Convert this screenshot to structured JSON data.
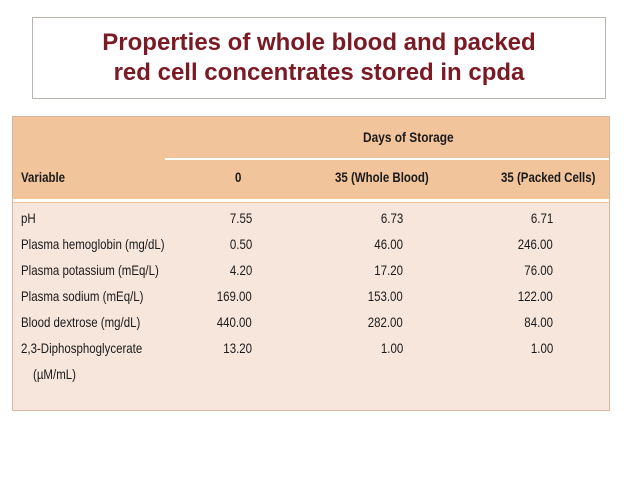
{
  "slide": {
    "title_line1": "Properties of whole blood and packed",
    "title_line2": "red cell concentrates stored in cpda"
  },
  "table": {
    "group_header": "Days of Storage",
    "columns": [
      "Variable",
      "0",
      "35 (Whole Blood)",
      "35 (Packed Cells)"
    ],
    "rows": [
      {
        "variable": "pH",
        "day0": "7.55",
        "whole": "6.73",
        "packed": "6.71"
      },
      {
        "variable": "Plasma hemoglobin (mg/dL)",
        "day0": "0.50",
        "whole": "46.00",
        "packed": "246.00"
      },
      {
        "variable": "Plasma potassium (mEq/L)",
        "day0": "4.20",
        "whole": "17.20",
        "packed": "76.00"
      },
      {
        "variable": "Plasma sodium (mEq/L)",
        "day0": "169.00",
        "whole": "153.00",
        "packed": "122.00"
      },
      {
        "variable": "Blood dextrose (mg/dL)",
        "day0": "440.00",
        "whole": "282.00",
        "packed": "84.00"
      },
      {
        "variable": "2,3-Diphosphoglycerate",
        "day0": "13.20",
        "whole": "1.00",
        "packed": "1.00"
      }
    ],
    "unit_continuation": "(µM/mL)"
  }
}
